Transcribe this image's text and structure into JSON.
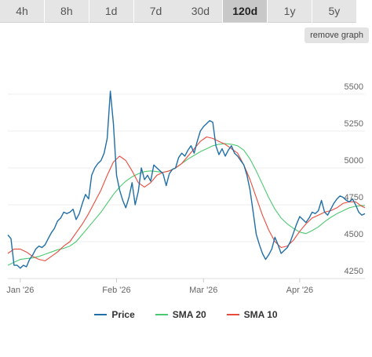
{
  "tabs": [
    {
      "label": "4h",
      "active": false
    },
    {
      "label": "8h",
      "active": false
    },
    {
      "label": "1d",
      "active": false
    },
    {
      "label": "7d",
      "active": false
    },
    {
      "label": "30d",
      "active": false
    },
    {
      "label": "120d",
      "active": true
    },
    {
      "label": "1y",
      "active": false
    },
    {
      "label": "5y",
      "active": false
    }
  ],
  "remove_graph_label": "remove graph",
  "chart_data": {
    "type": "line",
    "title": "",
    "xlabel": "",
    "ylabel": "",
    "ylim": [
      4250,
      5750
    ],
    "yticks": [
      4250,
      4500,
      4750,
      5000,
      5250,
      5500
    ],
    "xticks": [
      {
        "x": 4,
        "label": "Jan '26"
      },
      {
        "x": 35,
        "label": "Feb '26"
      },
      {
        "x": 63,
        "label": "Mar '26"
      },
      {
        "x": 94,
        "label": "Apr '26"
      }
    ],
    "grid": true,
    "legend_position": "bottom",
    "series": [
      {
        "name": "Price",
        "color": "#1f6fa6",
        "points": [
          [
            0,
            4545
          ],
          [
            1,
            4520
          ],
          [
            2,
            4340
          ],
          [
            3,
            4340
          ],
          [
            4,
            4320
          ],
          [
            5,
            4340
          ],
          [
            6,
            4330
          ],
          [
            7,
            4380
          ],
          [
            8,
            4410
          ],
          [
            9,
            4450
          ],
          [
            10,
            4470
          ],
          [
            11,
            4460
          ],
          [
            12,
            4480
          ],
          [
            13,
            4520
          ],
          [
            14,
            4560
          ],
          [
            15,
            4590
          ],
          [
            16,
            4640
          ],
          [
            17,
            4660
          ],
          [
            18,
            4700
          ],
          [
            19,
            4690
          ],
          [
            20,
            4700
          ],
          [
            21,
            4720
          ],
          [
            22,
            4650
          ],
          [
            23,
            4690
          ],
          [
            24,
            4760
          ],
          [
            25,
            4820
          ],
          [
            26,
            4790
          ],
          [
            27,
            4950
          ],
          [
            28,
            5000
          ],
          [
            29,
            5030
          ],
          [
            30,
            5050
          ],
          [
            31,
            5100
          ],
          [
            32,
            5200
          ],
          [
            33,
            5520
          ],
          [
            34,
            5300
          ],
          [
            35,
            4950
          ],
          [
            36,
            4850
          ],
          [
            37,
            4780
          ],
          [
            38,
            4730
          ],
          [
            39,
            4800
          ],
          [
            40,
            4900
          ],
          [
            41,
            4750
          ],
          [
            42,
            4840
          ],
          [
            43,
            5000
          ],
          [
            44,
            4920
          ],
          [
            45,
            4950
          ],
          [
            46,
            4910
          ],
          [
            47,
            5020
          ],
          [
            48,
            5000
          ],
          [
            49,
            4980
          ],
          [
            50,
            4960
          ],
          [
            51,
            4880
          ],
          [
            52,
            4960
          ],
          [
            53,
            4990
          ],
          [
            54,
            5000
          ],
          [
            55,
            5070
          ],
          [
            56,
            5100
          ],
          [
            57,
            5080
          ],
          [
            58,
            5120
          ],
          [
            59,
            5150
          ],
          [
            60,
            5100
          ],
          [
            61,
            5180
          ],
          [
            62,
            5250
          ],
          [
            63,
            5280
          ],
          [
            64,
            5300
          ],
          [
            65,
            5320
          ],
          [
            66,
            5310
          ],
          [
            67,
            5150
          ],
          [
            68,
            5090
          ],
          [
            69,
            5130
          ],
          [
            70,
            5080
          ],
          [
            71,
            5120
          ],
          [
            72,
            5150
          ],
          [
            73,
            5100
          ],
          [
            74,
            5080
          ],
          [
            75,
            5050
          ],
          [
            76,
            5020
          ],
          [
            77,
            4950
          ],
          [
            78,
            4850
          ],
          [
            79,
            4700
          ],
          [
            80,
            4550
          ],
          [
            81,
            4480
          ],
          [
            82,
            4420
          ],
          [
            83,
            4380
          ],
          [
            84,
            4410
          ],
          [
            85,
            4450
          ],
          [
            86,
            4530
          ],
          [
            87,
            4480
          ],
          [
            88,
            4420
          ],
          [
            89,
            4440
          ],
          [
            90,
            4460
          ],
          [
            91,
            4500
          ],
          [
            92,
            4560
          ],
          [
            93,
            4620
          ],
          [
            94,
            4670
          ],
          [
            95,
            4650
          ],
          [
            96,
            4630
          ],
          [
            97,
            4660
          ],
          [
            98,
            4700
          ],
          [
            99,
            4690
          ],
          [
            100,
            4710
          ],
          [
            101,
            4780
          ],
          [
            102,
            4700
          ],
          [
            103,
            4680
          ],
          [
            104,
            4720
          ],
          [
            105,
            4760
          ],
          [
            106,
            4790
          ],
          [
            107,
            4810
          ],
          [
            108,
            4800
          ],
          [
            109,
            4780
          ],
          [
            110,
            4770
          ],
          [
            111,
            4790
          ],
          [
            112,
            4750
          ],
          [
            113,
            4700
          ],
          [
            114,
            4680
          ],
          [
            115,
            4690
          ]
        ]
      },
      {
        "name": "SMA 20",
        "color": "#4cc970",
        "points": [
          [
            0,
            4340
          ],
          [
            2,
            4360
          ],
          [
            4,
            4380
          ],
          [
            6,
            4385
          ],
          [
            8,
            4390
          ],
          [
            10,
            4400
          ],
          [
            12,
            4415
          ],
          [
            14,
            4430
          ],
          [
            16,
            4445
          ],
          [
            18,
            4455
          ],
          [
            20,
            4470
          ],
          [
            22,
            4500
          ],
          [
            24,
            4550
          ],
          [
            26,
            4600
          ],
          [
            28,
            4650
          ],
          [
            30,
            4700
          ],
          [
            32,
            4760
          ],
          [
            34,
            4820
          ],
          [
            36,
            4870
          ],
          [
            38,
            4910
          ],
          [
            40,
            4940
          ],
          [
            42,
            4960
          ],
          [
            44,
            4975
          ],
          [
            46,
            4980
          ],
          [
            48,
            4975
          ],
          [
            50,
            4970
          ],
          [
            52,
            4980
          ],
          [
            54,
            5000
          ],
          [
            56,
            5030
          ],
          [
            58,
            5060
          ],
          [
            60,
            5085
          ],
          [
            62,
            5110
          ],
          [
            64,
            5130
          ],
          [
            66,
            5150
          ],
          [
            68,
            5160
          ],
          [
            70,
            5165
          ],
          [
            72,
            5160
          ],
          [
            74,
            5150
          ],
          [
            76,
            5120
          ],
          [
            78,
            5060
          ],
          [
            80,
            4980
          ],
          [
            82,
            4890
          ],
          [
            84,
            4800
          ],
          [
            86,
            4720
          ],
          [
            88,
            4660
          ],
          [
            90,
            4620
          ],
          [
            92,
            4590
          ],
          [
            94,
            4565
          ],
          [
            96,
            4555
          ],
          [
            98,
            4575
          ],
          [
            100,
            4600
          ],
          [
            102,
            4635
          ],
          [
            104,
            4665
          ],
          [
            106,
            4690
          ],
          [
            108,
            4710
          ],
          [
            110,
            4730
          ],
          [
            112,
            4740
          ],
          [
            114,
            4745
          ],
          [
            115,
            4745
          ]
        ]
      },
      {
        "name": "SMA 10",
        "color": "#e84b3c",
        "points": [
          [
            0,
            4420
          ],
          [
            2,
            4450
          ],
          [
            4,
            4450
          ],
          [
            6,
            4430
          ],
          [
            8,
            4400
          ],
          [
            10,
            4380
          ],
          [
            12,
            4370
          ],
          [
            14,
            4400
          ],
          [
            16,
            4430
          ],
          [
            18,
            4470
          ],
          [
            20,
            4500
          ],
          [
            22,
            4560
          ],
          [
            24,
            4620
          ],
          [
            26,
            4690
          ],
          [
            28,
            4770
          ],
          [
            30,
            4850
          ],
          [
            32,
            4950
          ],
          [
            34,
            5040
          ],
          [
            36,
            5080
          ],
          [
            38,
            5050
          ],
          [
            40,
            4980
          ],
          [
            42,
            4900
          ],
          [
            44,
            4870
          ],
          [
            46,
            4900
          ],
          [
            48,
            4950
          ],
          [
            50,
            4970
          ],
          [
            52,
            4980
          ],
          [
            54,
            5000
          ],
          [
            56,
            5030
          ],
          [
            58,
            5080
          ],
          [
            60,
            5130
          ],
          [
            62,
            5180
          ],
          [
            64,
            5210
          ],
          [
            66,
            5200
          ],
          [
            68,
            5180
          ],
          [
            70,
            5160
          ],
          [
            72,
            5130
          ],
          [
            74,
            5100
          ],
          [
            76,
            5020
          ],
          [
            78,
            4920
          ],
          [
            80,
            4800
          ],
          [
            82,
            4680
          ],
          [
            84,
            4580
          ],
          [
            86,
            4500
          ],
          [
            88,
            4460
          ],
          [
            90,
            4470
          ],
          [
            92,
            4510
          ],
          [
            94,
            4570
          ],
          [
            96,
            4620
          ],
          [
            98,
            4660
          ],
          [
            100,
            4680
          ],
          [
            102,
            4700
          ],
          [
            104,
            4710
          ],
          [
            106,
            4730
          ],
          [
            108,
            4760
          ],
          [
            110,
            4770
          ],
          [
            112,
            4770
          ],
          [
            114,
            4740
          ],
          [
            115,
            4730
          ]
        ]
      }
    ]
  }
}
